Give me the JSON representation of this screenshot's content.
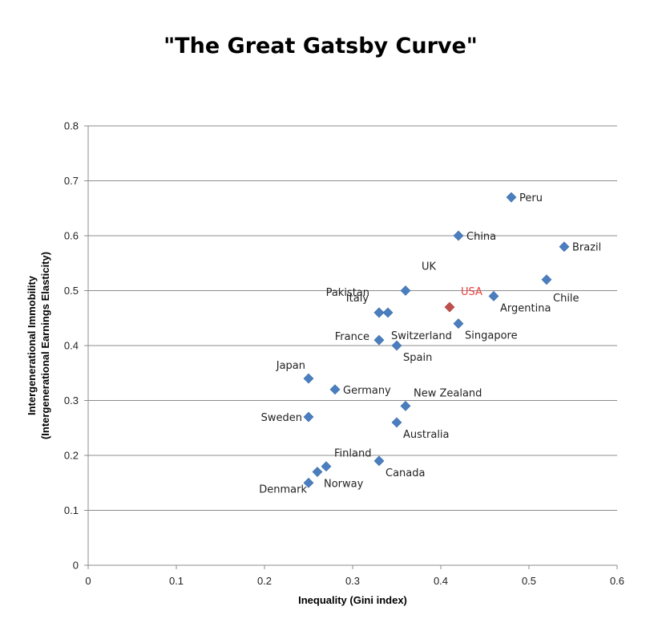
{
  "chart_data": {
    "type": "scatter",
    "title": "\"The Great Gatsby Curve\"",
    "xlabel": "Inequality (Gini index)",
    "ylabel_line1": "Intergenerational Immobility",
    "ylabel_line2": "(Intergenerational Earnings Elasticity)",
    "xlim": [
      0,
      0.6
    ],
    "ylim": [
      0,
      0.8
    ],
    "x_ticks": [
      0,
      0.1,
      0.2,
      0.3,
      0.4,
      0.5,
      0.6
    ],
    "x_tick_labels": [
      "0",
      "0.1",
      "0.2",
      "0.3",
      "0.4",
      "0.5",
      "0.6"
    ],
    "y_ticks": [
      0,
      0.1,
      0.2,
      0.3,
      0.4,
      0.5,
      0.6,
      0.7,
      0.8
    ],
    "y_tick_labels": [
      "0",
      "0.1",
      "0.2",
      "0.3",
      "0.4",
      "0.5",
      "0.6",
      "0.7",
      "0.8"
    ],
    "grid": true,
    "marker_color": "#4a7ebf",
    "highlight_color": "#c0504d",
    "points": [
      {
        "label": "Peru",
        "x": 0.48,
        "y": 0.67,
        "label_pos": "right"
      },
      {
        "label": "China",
        "x": 0.42,
        "y": 0.6,
        "label_pos": "right"
      },
      {
        "label": "Brazil",
        "x": 0.54,
        "y": 0.58,
        "label_pos": "right"
      },
      {
        "label": "Chile",
        "x": 0.52,
        "y": 0.52,
        "label_pos": "below-right"
      },
      {
        "label": "UK",
        "x": 0.36,
        "y": 0.5,
        "label_pos": "above-right"
      },
      {
        "label": "Italy",
        "x": 0.33,
        "y": 0.46,
        "label_pos": "above-right"
      },
      {
        "label": "USA",
        "x": 0.41,
        "y": 0.47,
        "label_pos": "above-right",
        "highlight": true
      },
      {
        "label": "Argentina",
        "x": 0.46,
        "y": 0.49,
        "label_pos": "below-right"
      },
      {
        "label": "Pakistan",
        "x": 0.33,
        "y": 0.46,
        "label_pos": "above-left"
      },
      {
        "label": "Switzerland",
        "x": 0.34,
        "y": 0.46,
        "label_pos": "below-right"
      },
      {
        "label": "Singapore",
        "x": 0.42,
        "y": 0.44,
        "label_pos": "below-right"
      },
      {
        "label": "France",
        "x": 0.33,
        "y": 0.41,
        "label_pos": "left"
      },
      {
        "label": "Spain",
        "x": 0.35,
        "y": 0.4,
        "label_pos": "below-right"
      },
      {
        "label": "Japan",
        "x": 0.25,
        "y": 0.34,
        "label_pos": "above-left"
      },
      {
        "label": "Germany",
        "x": 0.28,
        "y": 0.32,
        "label_pos": "right"
      },
      {
        "label": "New Zealand",
        "x": 0.36,
        "y": 0.29,
        "label_pos": "above-right"
      },
      {
        "label": "Sweden",
        "x": 0.25,
        "y": 0.27,
        "label_pos": "left"
      },
      {
        "label": "Australia",
        "x": 0.35,
        "y": 0.26,
        "label_pos": "below-right"
      },
      {
        "label": "Finland",
        "x": 0.27,
        "y": 0.18,
        "label_pos": "above-right"
      },
      {
        "label": "Canada",
        "x": 0.33,
        "y": 0.19,
        "label_pos": "below-right"
      },
      {
        "label": "Norway",
        "x": 0.26,
        "y": 0.17,
        "label_pos": "below-right"
      },
      {
        "label": "Denmark",
        "x": 0.25,
        "y": 0.15,
        "label_pos": "below-left"
      }
    ]
  }
}
